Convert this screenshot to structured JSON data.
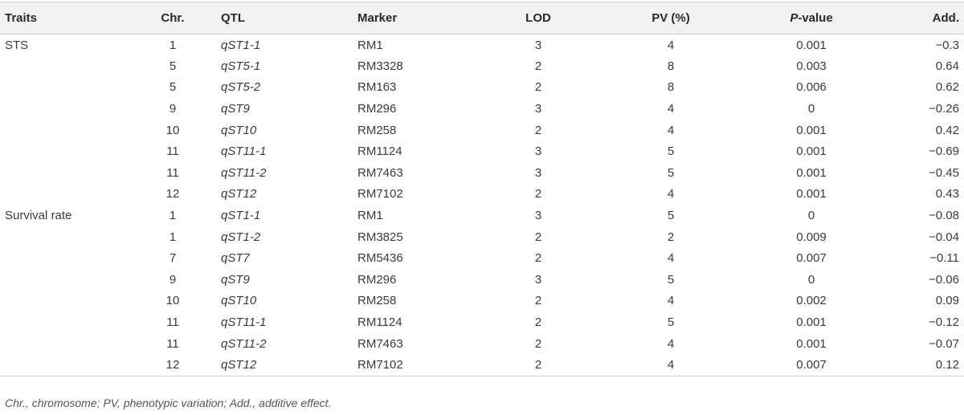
{
  "table": {
    "headers": {
      "traits": "Traits",
      "chr": "Chr.",
      "qtl": "QTL",
      "marker": "Marker",
      "lod": "LOD",
      "pv": "PV (%)",
      "p_italic": "P",
      "p_rest": "-value",
      "add": "Add."
    },
    "rows": [
      {
        "trait": "STS",
        "chr": "1",
        "qtl": "qST1-1",
        "marker": "RM1",
        "lod": "3",
        "pv": "4",
        "p": "0.001",
        "add": "−0.3"
      },
      {
        "trait": "",
        "chr": "5",
        "qtl": "qST5-1",
        "marker": "RM3328",
        "lod": "2",
        "pv": "8",
        "p": "0.003",
        "add": "0.64"
      },
      {
        "trait": "",
        "chr": "5",
        "qtl": "qST5-2",
        "marker": "RM163",
        "lod": "2",
        "pv": "8",
        "p": "0.006",
        "add": "0.62"
      },
      {
        "trait": "",
        "chr": "9",
        "qtl": "qST9",
        "marker": "RM296",
        "lod": "3",
        "pv": "4",
        "p": "0",
        "add": "−0.26"
      },
      {
        "trait": "",
        "chr": "10",
        "qtl": "qST10",
        "marker": "RM258",
        "lod": "2",
        "pv": "4",
        "p": "0.001",
        "add": "0.42"
      },
      {
        "trait": "",
        "chr": "11",
        "qtl": "qST11-1",
        "marker": "RM1124",
        "lod": "3",
        "pv": "5",
        "p": "0.001",
        "add": "−0.69"
      },
      {
        "trait": "",
        "chr": "11",
        "qtl": "qST11-2",
        "marker": "RM7463",
        "lod": "3",
        "pv": "5",
        "p": "0.001",
        "add": "−0.45"
      },
      {
        "trait": "",
        "chr": "12",
        "qtl": "qST12",
        "marker": "RM7102",
        "lod": "2",
        "pv": "4",
        "p": "0.001",
        "add": "0.43"
      },
      {
        "trait": "Survival rate",
        "chr": "1",
        "qtl": "qST1-1",
        "marker": "RM1",
        "lod": "3",
        "pv": "5",
        "p": "0",
        "add": "−0.08"
      },
      {
        "trait": "",
        "chr": "1",
        "qtl": "qST1-2",
        "marker": "RM3825",
        "lod": "2",
        "pv": "2",
        "p": "0.009",
        "add": "−0.04"
      },
      {
        "trait": "",
        "chr": "7",
        "qtl": "qST7",
        "marker": "RM5436",
        "lod": "2",
        "pv": "4",
        "p": "0.007",
        "add": "−0.11"
      },
      {
        "trait": "",
        "chr": "9",
        "qtl": "qST9",
        "marker": "RM296",
        "lod": "3",
        "pv": "5",
        "p": "0",
        "add": "−0.06"
      },
      {
        "trait": "",
        "chr": "10",
        "qtl": "qST10",
        "marker": "RM258",
        "lod": "2",
        "pv": "4",
        "p": "0.002",
        "add": "0.09"
      },
      {
        "trait": "",
        "chr": "11",
        "qtl": "qST11-1",
        "marker": "RM1124",
        "lod": "2",
        "pv": "5",
        "p": "0.001",
        "add": "−0.12"
      },
      {
        "trait": "",
        "chr": "11",
        "qtl": "qST11-2",
        "marker": "RM7463",
        "lod": "2",
        "pv": "4",
        "p": "0.001",
        "add": "−0.07"
      },
      {
        "trait": "",
        "chr": "12",
        "qtl": "qST12",
        "marker": "RM7102",
        "lod": "2",
        "pv": "4",
        "p": "0.007",
        "add": "0.12"
      }
    ]
  },
  "footnote": "Chr., chromosome; PV, phenotypic variation; Add., additive effect."
}
